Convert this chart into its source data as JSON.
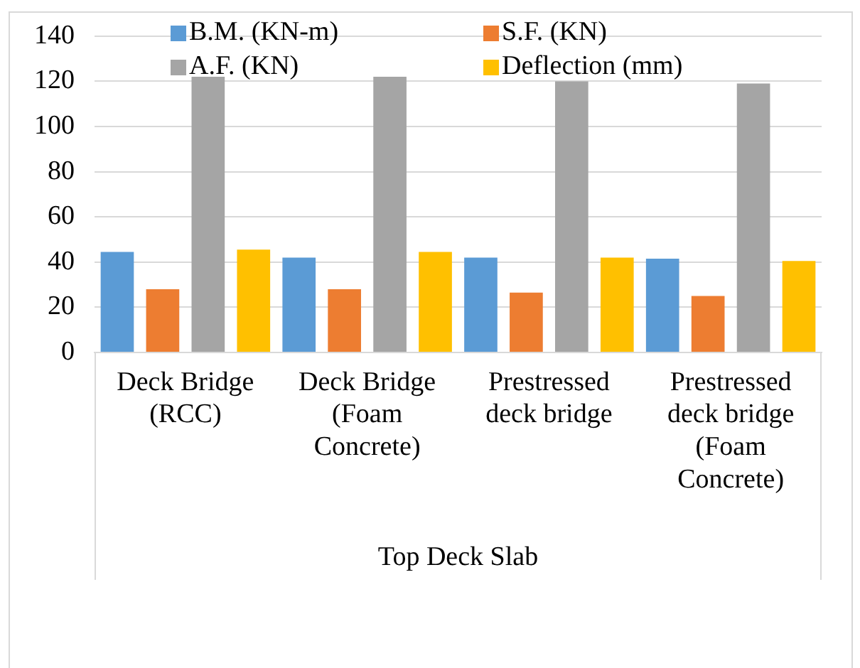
{
  "chart_data": {
    "type": "bar",
    "categories": [
      "Deck Bridge (RCC)",
      "Deck Bridge (Foam Concrete)",
      "Prestressed deck bridge",
      "Prestressed deck bridge (Foam Concrete)"
    ],
    "xlabel": "Top Deck Slab",
    "series": [
      {
        "name": "B.M. (KN-m)",
        "color": "#5b9bd5",
        "values": [
          44.5,
          42,
          42,
          41.5
        ]
      },
      {
        "name": "S.F. (KN)",
        "color": "#ed7d31",
        "values": [
          28,
          28,
          26.5,
          25
        ]
      },
      {
        "name": "A.F. (KN)",
        "color": "#a5a5a5",
        "values": [
          122,
          122,
          120,
          119
        ]
      },
      {
        "name": "Deflection (mm)",
        "color": "#ffc000",
        "values": [
          45.5,
          44.5,
          42,
          40.5
        ]
      }
    ],
    "ylim": [
      0,
      140
    ],
    "yticks": [
      0,
      20,
      40,
      60,
      80,
      100,
      120,
      140
    ],
    "grid": "y",
    "legend": "top"
  }
}
